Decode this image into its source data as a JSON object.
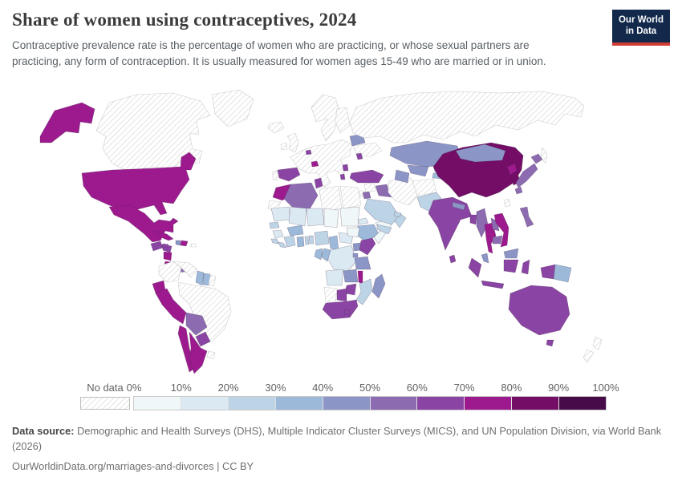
{
  "header": {
    "title": "Share of women using contraceptives, 2024",
    "subtitle": "Contraceptive prevalence rate is the percentage of women who are practicing, or whose sexual partners are practicing, any form of contraception. It is usually measured for women ages 15-49 who are married or in union.",
    "logo": {
      "line1": "Our World",
      "line2": "in Data"
    }
  },
  "legend": {
    "no_data_label": "No data",
    "tick_labels": [
      "0%",
      "10%",
      "20%",
      "30%",
      "40%",
      "50%",
      "60%",
      "70%",
      "80%",
      "90%",
      "100%"
    ],
    "colors": [
      "#eff7f8",
      "#dbe9f2",
      "#bdd4e7",
      "#9cb9d9",
      "#8b95c6",
      "#8c6bb1",
      "#8a44a3",
      "#9c1a8e",
      "#730d66",
      "#470b49"
    ],
    "no_data_pattern": "gray-diagonal-hatch"
  },
  "footer": {
    "source_label": "Data source:",
    "source_text": " Demographic and Health Surveys (DHS), Multiple Indicator Cluster Surveys (MICS), and UN Population Division, via World Bank (2026)",
    "link": "OurWorldinData.org/marriages-and-divorces",
    "separator": " | ",
    "license": "CC BY"
  },
  "chart_data": {
    "type": "choropleth_map",
    "title": "Share of women using contraceptives, 2024",
    "unit": "% of women ages 15-49 (married or in union) using contraception",
    "year": 2024,
    "bins": [
      "0-10%",
      "10-20%",
      "20-30%",
      "30-40%",
      "40-50%",
      "50-60%",
      "60-70%",
      "70-80%",
      "80-90%",
      "90-100%"
    ],
    "no_data_style": "hatched",
    "regions": [
      {
        "id": "usa",
        "name": "United States",
        "value": "70-80%"
      },
      {
        "id": "canada",
        "name": "Canada",
        "value": "no data"
      },
      {
        "id": "greenland",
        "name": "Greenland",
        "value": "no data"
      },
      {
        "id": "iceland",
        "name": "Iceland",
        "value": "no data"
      },
      {
        "id": "mexico",
        "name": "Mexico",
        "value": "70-80%"
      },
      {
        "id": "guatemala",
        "name": "Guatemala",
        "value": "60-70%"
      },
      {
        "id": "honduras",
        "name": "Honduras",
        "value": "60-70%"
      },
      {
        "id": "nicaragua",
        "name": "Nicaragua",
        "value": "70-80%"
      },
      {
        "id": "costa-rica",
        "name": "Costa Rica",
        "value": "70-80%"
      },
      {
        "id": "panama",
        "name": "Panama",
        "value": "50-60%"
      },
      {
        "id": "cuba",
        "name": "Cuba",
        "value": "70-80%"
      },
      {
        "id": "jamaica",
        "name": "Jamaica",
        "value": "60-70%"
      },
      {
        "id": "haiti",
        "name": "Haiti",
        "value": "40-50%"
      },
      {
        "id": "dominican-republic",
        "name": "Dominican Republic",
        "value": "70-80%"
      },
      {
        "id": "puerto-rico",
        "name": "Puerto Rico",
        "value": "no data"
      },
      {
        "id": "colombia",
        "name": "Colombia",
        "value": "no data"
      },
      {
        "id": "venezuela",
        "name": "Venezuela",
        "value": "no data"
      },
      {
        "id": "guyana",
        "name": "Guyana",
        "value": "30-40%"
      },
      {
        "id": "suriname",
        "name": "Suriname",
        "value": "30-40%"
      },
      {
        "id": "french-guiana",
        "name": "French Guiana",
        "value": "no data"
      },
      {
        "id": "brazil",
        "name": "Brazil",
        "value": "no data"
      },
      {
        "id": "ecuador",
        "name": "Ecuador",
        "value": "70-80%"
      },
      {
        "id": "peru",
        "name": "Peru",
        "value": "70-80%"
      },
      {
        "id": "bolivia",
        "name": "Bolivia",
        "value": "50-60%"
      },
      {
        "id": "paraguay",
        "name": "Paraguay",
        "value": "60-70%"
      },
      {
        "id": "chile",
        "name": "Chile",
        "value": "70-80%"
      },
      {
        "id": "argentina",
        "name": "Argentina",
        "value": "70-80%"
      },
      {
        "id": "uruguay",
        "name": "Uruguay",
        "value": "no data"
      },
      {
        "id": "united-kingdom",
        "name": "United Kingdom",
        "value": "no data"
      },
      {
        "id": "ireland",
        "name": "Ireland",
        "value": "no data"
      },
      {
        "id": "scandinavia",
        "name": "Norway & Sweden",
        "value": "no data"
      },
      {
        "id": "finland",
        "name": "Finland",
        "value": "no data"
      },
      {
        "id": "western-europe",
        "name": "Western & Central Europe (France, Germany, Italy, Poland, Balkans)",
        "value": "no data"
      },
      {
        "id": "ukraine-romania",
        "name": "Ukraine & Romania",
        "value": "no data"
      },
      {
        "id": "portugal",
        "name": "Portugal",
        "value": "no data"
      },
      {
        "id": "spain",
        "name": "Spain",
        "value": "60-70%"
      },
      {
        "id": "belgium",
        "name": "Belgium",
        "value": "60-70%"
      },
      {
        "id": "switzerland",
        "name": "Switzerland",
        "value": "70-80%"
      },
      {
        "id": "belarus",
        "name": "Belarus",
        "value": "40-50%"
      },
      {
        "id": "moldova",
        "name": "Moldova",
        "value": "60-70%"
      },
      {
        "id": "serbia",
        "name": "Serbia",
        "value": "60-70%"
      },
      {
        "id": "albania",
        "name": "Albania",
        "value": "60-70%"
      },
      {
        "id": "russia",
        "name": "Russia",
        "value": "no data"
      },
      {
        "id": "morocco",
        "name": "Morocco",
        "value": "70-80%"
      },
      {
        "id": "western-sahara",
        "name": "Western Sahara",
        "value": "no data"
      },
      {
        "id": "algeria",
        "name": "Algeria",
        "value": "50-60%"
      },
      {
        "id": "tunisia",
        "name": "Tunisia",
        "value": "60-70%"
      },
      {
        "id": "libya",
        "name": "Libya",
        "value": "no data"
      },
      {
        "id": "egypt",
        "name": "Egypt",
        "value": "no data"
      },
      {
        "id": "mauritania",
        "name": "Mauritania",
        "value": "10-20%"
      },
      {
        "id": "mali",
        "name": "Mali",
        "value": "10-20%"
      },
      {
        "id": "niger",
        "name": "Niger",
        "value": "10-20%"
      },
      {
        "id": "chad",
        "name": "Chad",
        "value": "0-10%"
      },
      {
        "id": "sudan",
        "name": "Sudan",
        "value": "0-10%"
      },
      {
        "id": "eritrea",
        "name": "Eritrea",
        "value": "10-20%"
      },
      {
        "id": "ethiopia",
        "name": "Ethiopia",
        "value": "30-40%"
      },
      {
        "id": "somalia",
        "name": "Somalia",
        "value": "0-10%"
      },
      {
        "id": "senegal",
        "name": "Senegal",
        "value": "20-30%"
      },
      {
        "id": "guinea",
        "name": "Guinea",
        "value": "10-20%"
      },
      {
        "id": "sierra-leone",
        "name": "Sierra Leone",
        "value": "20-30%"
      },
      {
        "id": "liberia",
        "name": "Liberia",
        "value": "20-30%"
      },
      {
        "id": "cote-divoire",
        "name": "Cote d'Ivoire",
        "value": "20-30%"
      },
      {
        "id": "ghana",
        "name": "Ghana",
        "value": "30-40%"
      },
      {
        "id": "togo",
        "name": "Togo",
        "value": "20-30%"
      },
      {
        "id": "benin",
        "name": "Benin",
        "value": "20-30%"
      },
      {
        "id": "burkina-faso",
        "name": "Burkina Faso",
        "value": "30-40%"
      },
      {
        "id": "nigeria",
        "name": "Nigeria",
        "value": "20-30%"
      },
      {
        "id": "cameroon",
        "name": "Cameroon",
        "value": "30-40%"
      },
      {
        "id": "central-african-republic",
        "name": "Central African Republic",
        "value": "10-20%"
      },
      {
        "id": "south-sudan",
        "name": "South Sudan",
        "value": "0-10%"
      },
      {
        "id": "drc",
        "name": "Democratic Republic of Congo",
        "value": "10-20%"
      },
      {
        "id": "congo",
        "name": "Congo",
        "value": "30-40%"
      },
      {
        "id": "gabon",
        "name": "Gabon",
        "value": "30-40%"
      },
      {
        "id": "uganda",
        "name": "Uganda",
        "value": "40-50%"
      },
      {
        "id": "kenya",
        "name": "Kenya",
        "value": "60-70%"
      },
      {
        "id": "rwanda",
        "name": "Rwanda",
        "value": "40-50%"
      },
      {
        "id": "tanzania",
        "name": "Tanzania",
        "value": "40-50%"
      },
      {
        "id": "angola",
        "name": "Angola",
        "value": "10-20%"
      },
      {
        "id": "zambia",
        "name": "Zambia",
        "value": "40-50%"
      },
      {
        "id": "malawi",
        "name": "Malawi",
        "value": "70-80%"
      },
      {
        "id": "mozambique",
        "name": "Mozambique",
        "value": "20-30%"
      },
      {
        "id": "zimbabwe",
        "name": "Zimbabwe",
        "value": "60-70%"
      },
      {
        "id": "botswana",
        "name": "Botswana",
        "value": "60-70%"
      },
      {
        "id": "namibia",
        "name": "Namibia",
        "value": "no data"
      },
      {
        "id": "south-africa",
        "name": "South Africa",
        "value": "60-70%"
      },
      {
        "id": "lesotho",
        "name": "Lesotho",
        "value": "60-70%"
      },
      {
        "id": "madagascar",
        "name": "Madagascar",
        "value": "40-50%"
      },
      {
        "id": "turkey",
        "name": "Turkey",
        "value": "60-70%"
      },
      {
        "id": "syria",
        "name": "Syria",
        "value": "no data"
      },
      {
        "id": "iraq",
        "name": "Iraq",
        "value": "50-60%"
      },
      {
        "id": "iran",
        "name": "Iran",
        "value": "no data"
      },
      {
        "id": "jordan",
        "name": "Jordan",
        "value": "50-60%"
      },
      {
        "id": "israel",
        "name": "Israel",
        "value": "no data"
      },
      {
        "id": "saudi-arabia",
        "name": "Saudi Arabia",
        "value": "20-30%"
      },
      {
        "id": "yemen",
        "name": "Yemen",
        "value": "20-30%"
      },
      {
        "id": "oman",
        "name": "Oman",
        "value": "20-30%"
      },
      {
        "id": "united-arab-emirates",
        "name": "United Arab Emirates",
        "value": "20-30%"
      },
      {
        "id": "kazakhstan",
        "name": "Kazakhstan",
        "value": "40-50%"
      },
      {
        "id": "uzbekistan",
        "name": "Uzbekistan",
        "value": "40-50%"
      },
      {
        "id": "turkmenistan",
        "name": "Turkmenistan",
        "value": "40-50%"
      },
      {
        "id": "kyrgyzstan",
        "name": "Kyrgyzstan",
        "value": "30-40%"
      },
      {
        "id": "tajikistan",
        "name": "Tajikistan",
        "value": "30-40%"
      },
      {
        "id": "afghanistan",
        "name": "Afghanistan",
        "value": "no data"
      },
      {
        "id": "pakistan",
        "name": "Pakistan",
        "value": "20-30%"
      },
      {
        "id": "india",
        "name": "India",
        "value": "60-70%"
      },
      {
        "id": "nepal",
        "name": "Nepal",
        "value": "40-50%"
      },
      {
        "id": "bangladesh",
        "name": "Bangladesh",
        "value": "60-70%"
      },
      {
        "id": "sri-lanka",
        "name": "Sri Lanka",
        "value": "60-70%"
      },
      {
        "id": "myanmar",
        "name": "Myanmar",
        "value": "50-60%"
      },
      {
        "id": "thailand",
        "name": "Thailand",
        "value": "70-80%"
      },
      {
        "id": "laos",
        "name": "Laos",
        "value": "50-60%"
      },
      {
        "id": "cambodia",
        "name": "Cambodia",
        "value": "50-60%"
      },
      {
        "id": "vietnam",
        "name": "Vietnam",
        "value": "70-80%"
      },
      {
        "id": "china",
        "name": "China",
        "value": "80-90%"
      },
      {
        "id": "mongolia",
        "name": "Mongolia",
        "value": "40-50%"
      },
      {
        "id": "north-korea",
        "name": "North Korea",
        "value": "70-80%"
      },
      {
        "id": "south-korea",
        "name": "South Korea",
        "value": "80-90%"
      },
      {
        "id": "japan",
        "name": "Japan",
        "value": "50-60%"
      },
      {
        "id": "taiwan",
        "name": "Taiwan",
        "value": "no data"
      },
      {
        "id": "philippines",
        "name": "Philippines",
        "value": "50-60%"
      },
      {
        "id": "malaysia",
        "name": "Malaysia",
        "value": "40-50%"
      },
      {
        "id": "indonesia",
        "name": "Indonesia",
        "value": "60-70%"
      },
      {
        "id": "papua-new-guinea",
        "name": "Papua New Guinea",
        "value": "30-40%"
      },
      {
        "id": "australia",
        "name": "Australia",
        "value": "60-70%"
      },
      {
        "id": "new-zealand",
        "name": "New Zealand",
        "value": "no data"
      }
    ]
  }
}
